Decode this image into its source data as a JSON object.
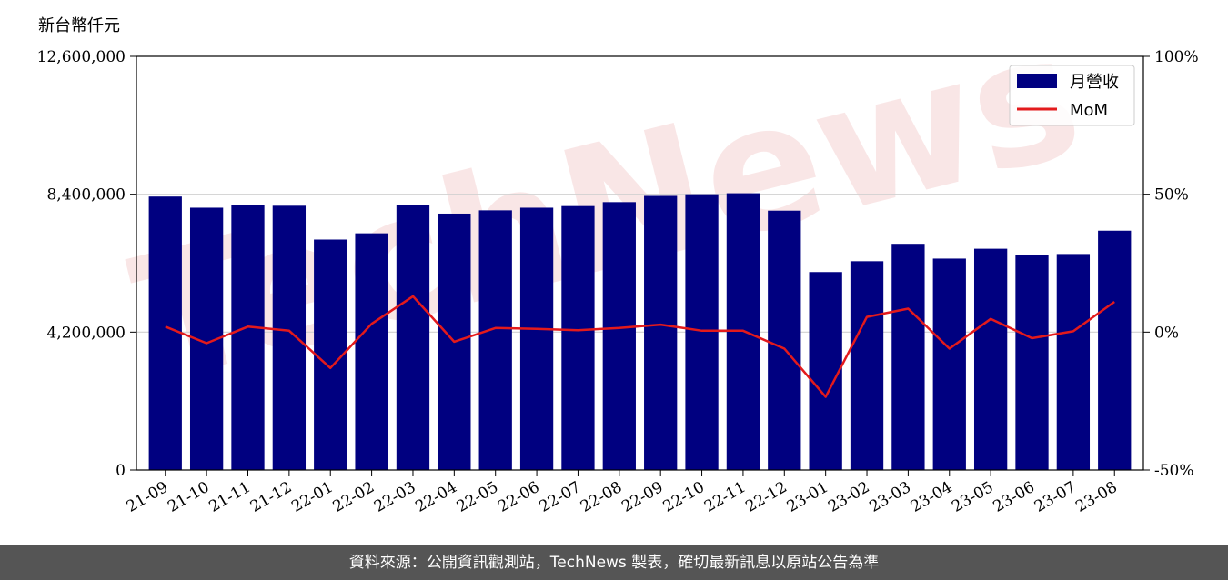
{
  "unit_label": "新台幣仟元",
  "footer_text": "資料來源：公開資訊觀測站，TechNews 製表，確切最新訊息以原站公告為準",
  "watermark_text": "TechNews",
  "chart_data": {
    "type": "bar",
    "categories": [
      "21-09",
      "21-10",
      "21-11",
      "21-12",
      "22-01",
      "22-02",
      "22-03",
      "22-04",
      "22-05",
      "22-06",
      "22-07",
      "22-08",
      "22-09",
      "22-10",
      "22-11",
      "22-12",
      "23-01",
      "23-02",
      "23-03",
      "23-04",
      "23-05",
      "23-06",
      "23-07",
      "23-08"
    ],
    "series": [
      {
        "name": "月營收",
        "type": "bar",
        "axis": "left",
        "color": "#000080",
        "values": [
          8330000,
          7990000,
          8060000,
          8050000,
          7020000,
          7210000,
          8080000,
          7810000,
          7910000,
          7990000,
          8040000,
          8160000,
          8350000,
          8400000,
          8430000,
          7900000,
          6030000,
          6360000,
          6890000,
          6440000,
          6740000,
          6560000,
          6580000,
          7290000
        ]
      },
      {
        "name": "MoM",
        "type": "line",
        "axis": "right",
        "color": "#e31a1c",
        "values": [
          2.0,
          -4.0,
          2.0,
          0.5,
          -13.0,
          3.0,
          13.0,
          -3.5,
          1.5,
          1.2,
          0.7,
          1.5,
          2.7,
          0.5,
          0.5,
          -6.0,
          -23.5,
          5.5,
          8.5,
          -6.0,
          4.8,
          -2.2,
          0.3,
          11.0
        ]
      }
    ],
    "y_left": {
      "range": [
        0,
        12600000
      ],
      "ticks": [
        0,
        4200000,
        8400000,
        12600000
      ],
      "tick_labels": [
        "0",
        "4,200,000",
        "8,400,000",
        "12,600,000"
      ]
    },
    "y_right": {
      "range": [
        -50,
        100
      ],
      "ticks": [
        -50,
        0,
        50,
        100
      ],
      "tick_labels": [
        "-50%",
        "0%",
        "50%",
        "100%"
      ]
    },
    "grid": "horizontal",
    "legend_position": "top-right"
  }
}
